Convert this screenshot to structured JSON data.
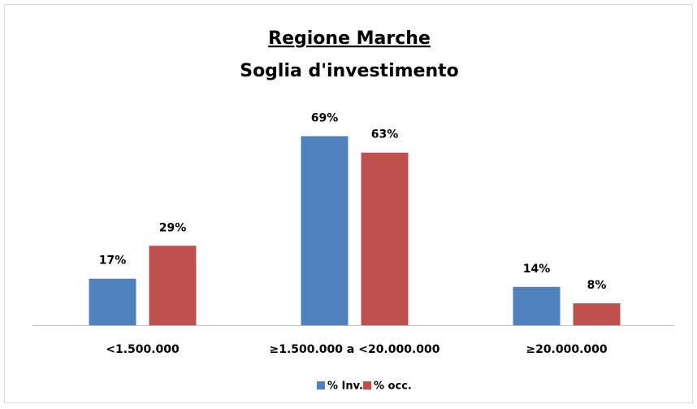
{
  "chart_data": {
    "type": "bar",
    "title": "Regione Marche",
    "subtitle": "Soglia d'investimento",
    "categories": [
      "<1.500.000",
      "≥1.500.000 a <20.000.000",
      "≥20.000.000"
    ],
    "series": [
      {
        "name": "% Inv.",
        "color": "#4f81bd",
        "values": [
          17,
          69,
          14
        ],
        "value_labels": [
          "17%",
          "69%",
          "14%"
        ]
      },
      {
        "name": "% occ.",
        "color": "#c0504d",
        "values": [
          29,
          63,
          8
        ],
        "value_labels": [
          "29%",
          "63%",
          "8%"
        ]
      }
    ],
    "legend": "bottom"
  }
}
